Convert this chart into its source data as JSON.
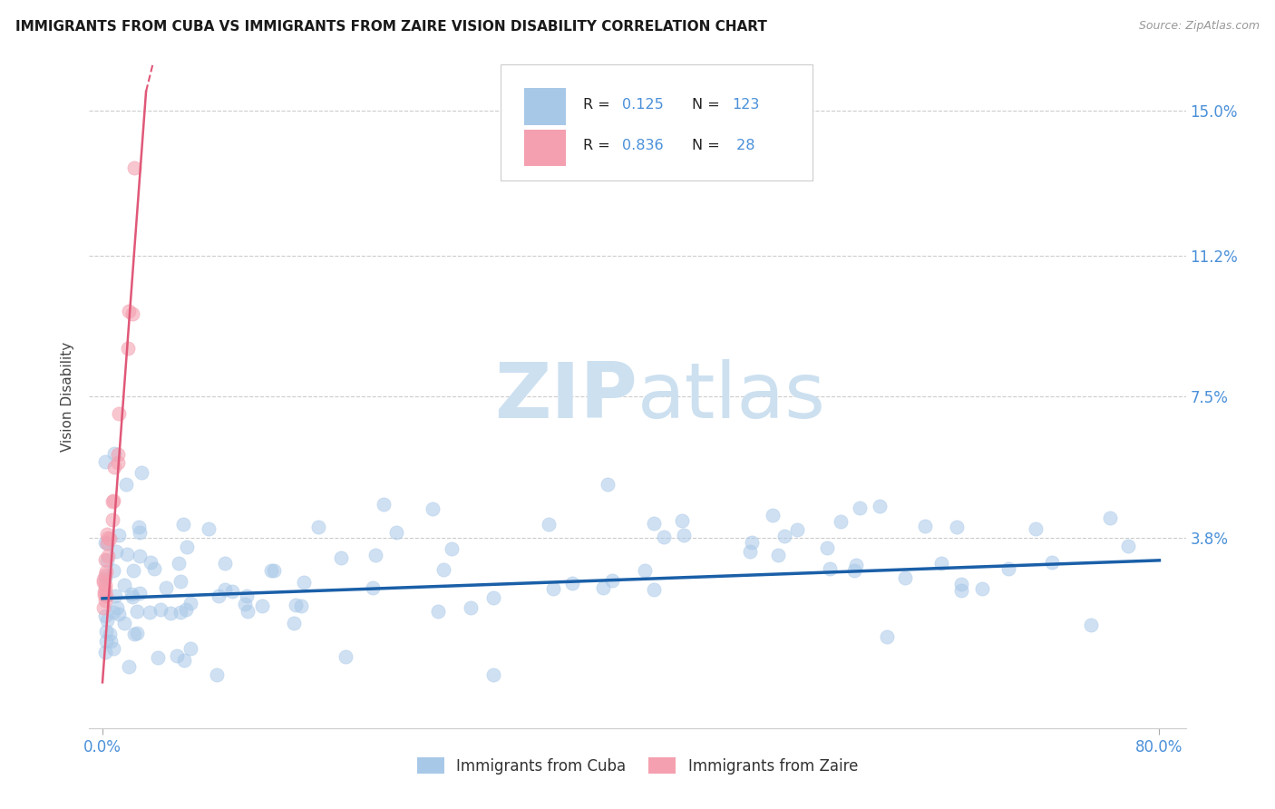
{
  "title": "IMMIGRANTS FROM CUBA VS IMMIGRANTS FROM ZAIRE VISION DISABILITY CORRELATION CHART",
  "source": "Source: ZipAtlas.com",
  "ylabel": "Vision Disability",
  "ytick_values": [
    0.038,
    0.075,
    0.112,
    0.15
  ],
  "ytick_labels": [
    "3.8%",
    "7.5%",
    "11.2%",
    "15.0%"
  ],
  "xlim": [
    -0.01,
    0.82
  ],
  "ylim": [
    -0.012,
    0.162
  ],
  "cuba_R": 0.125,
  "cuba_N": 123,
  "zaire_R": 0.836,
  "zaire_N": 28,
  "cuba_color": "#a8c8e8",
  "zaire_color": "#f4a0b0",
  "cuba_line_color": "#1a5fa8",
  "zaire_line_color": "#e05878",
  "watermark_zip": "ZIP",
  "watermark_atlas": "atlas",
  "watermark_color": "#cce0f0",
  "background_color": "#ffffff",
  "axis_label_color": "#4a90d9",
  "grid_color": "#cccccc",
  "legend_label1": "Immigrants from Cuba",
  "legend_label2": "Immigrants from Zaire",
  "cuba_trend_y0": 0.022,
  "cuba_trend_y1": 0.032,
  "zaire_trend_x0": 0.0,
  "zaire_trend_x1": 0.033,
  "zaire_trend_y0": -0.01,
  "zaire_trend_y1": 0.155
}
